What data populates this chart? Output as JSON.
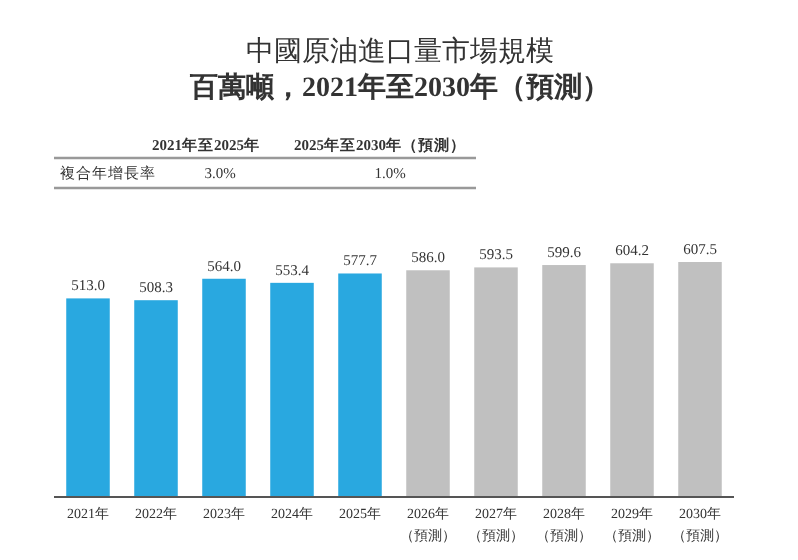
{
  "chart_data": {
    "type": "bar",
    "title": "中國原油進口量市場規模",
    "subtitle": "百萬噸，2021年至2030年（預測）",
    "categories": [
      "2021年",
      "2022年",
      "2023年",
      "2024年",
      "2025年",
      "2026年（預測）",
      "2027年（預測）",
      "2028年（預測）",
      "2029年（預測）",
      "2030年（預測）"
    ],
    "values": [
      513.0,
      508.3,
      564.0,
      553.4,
      577.7,
      586.0,
      593.5,
      599.6,
      604.2,
      607.5
    ],
    "value_labels": [
      "513.0",
      "508.3",
      "564.0",
      "553.4",
      "577.7",
      "586.0",
      "593.5",
      "599.6",
      "604.2",
      "607.5"
    ],
    "colors": [
      "#29a8e0",
      "#29a8e0",
      "#29a8e0",
      "#29a8e0",
      "#29a8e0",
      "#c0c0c0",
      "#c0c0c0",
      "#c0c0c0",
      "#c0c0c0",
      "#c0c0c0"
    ],
    "annotations": [
      "2021年至2025年",
      "2025年至2030年（預測）",
      "複合年增長率",
      "3.0%",
      "1.0%"
    ],
    "data_labels": false
  }
}
